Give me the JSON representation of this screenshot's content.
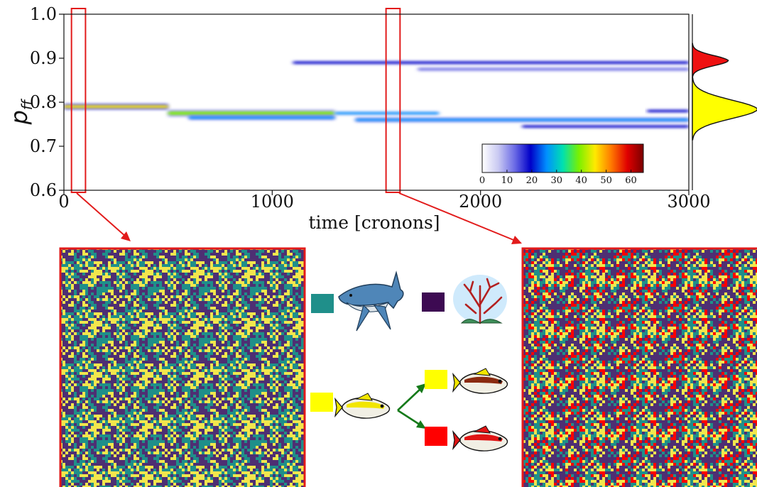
{
  "chart_data": {
    "type": "heatmap",
    "xlabel": "time [cronons]",
    "ylabel_base": "p",
    "ylabel_sub": "ff",
    "xlim": [
      0,
      3000
    ],
    "ylim": [
      0.6,
      1.0
    ],
    "xticks": [
      "0",
      "1000",
      "2000",
      "3000"
    ],
    "yticks": [
      "0.6",
      "0.7",
      "0.8",
      "0.9",
      "1.0"
    ],
    "colorbar": {
      "range": [
        0,
        65
      ],
      "ticks": [
        "0",
        "10",
        "20",
        "30",
        "40",
        "50",
        "60"
      ],
      "colors": [
        "#ffffff",
        "#c9c9f2",
        "#6d6de6",
        "#0000c8",
        "#0090ff",
        "#00e0b0",
        "#7af000",
        "#ffea00",
        "#ff7a00",
        "#e00000",
        "#7a0000"
      ]
    },
    "bands": [
      {
        "x0": 0,
        "x1": 500,
        "y": 0.79,
        "intensity": 45,
        "width": 0.006
      },
      {
        "x0": 500,
        "x1": 1300,
        "y": 0.775,
        "intensity": 40,
        "width": 0.007
      },
      {
        "x0": 600,
        "x1": 1300,
        "y": 0.765,
        "intensity": 28,
        "width": 0.005
      },
      {
        "x0": 1300,
        "x1": 1800,
        "y": 0.775,
        "intensity": 24,
        "width": 0.004
      },
      {
        "x0": 1400,
        "x1": 3000,
        "y": 0.76,
        "intensity": 26,
        "width": 0.005
      },
      {
        "x0": 2200,
        "x1": 3000,
        "y": 0.745,
        "intensity": 22,
        "width": 0.004
      },
      {
        "x0": 1100,
        "x1": 3000,
        "y": 0.89,
        "intensity": 18,
        "width": 0.005
      },
      {
        "x0": 1700,
        "x1": 3000,
        "y": 0.875,
        "intensity": 14,
        "width": 0.004
      },
      {
        "x0": 2800,
        "x1": 3000,
        "y": 0.78,
        "intensity": 20,
        "width": 0.004
      }
    ],
    "highlights": [
      {
        "x0": 50,
        "x1": 90
      },
      {
        "x0": 1560,
        "x1": 1600
      }
    ],
    "marginal": [
      {
        "y": 0.895,
        "value": 0.55,
        "color": "#ee1111"
      },
      {
        "y": 0.785,
        "value": 1.0,
        "color": "#ffff00"
      }
    ]
  },
  "legend": {
    "items": [
      {
        "name": "shark",
        "color": "#1f8f8a",
        "icon": "shark-icon"
      },
      {
        "name": "coral",
        "color": "#3d0a52",
        "icon": "coral-icon"
      },
      {
        "name": "fish",
        "color": "#ffff00",
        "icon": "fish-icon"
      },
      {
        "name": "fish-yellow",
        "color": "#ffff00",
        "icon": "fish-icon"
      },
      {
        "name": "fish-red",
        "color": "#ff0000",
        "icon": "fish-icon"
      }
    ],
    "arrow_color": "#157a1a"
  },
  "panels": {
    "left_colors": [
      "#1f8f8a",
      "#f2e64d",
      "#4e2f73"
    ],
    "right_colors": [
      "#1f8f8a",
      "#f2e64d",
      "#4e2f73",
      "#ff0000"
    ],
    "border_color": "#e21b1b"
  }
}
